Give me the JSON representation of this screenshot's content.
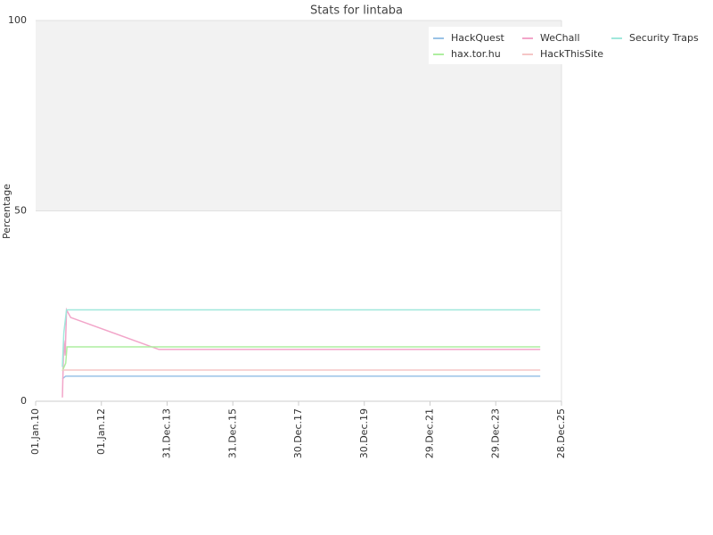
{
  "chart_data": {
    "type": "line",
    "title": "Stats for lintaba",
    "y_label": "Percentage",
    "xlim": [
      "2010-01-01",
      "2025-12-28"
    ],
    "xticks": [
      {
        "value": "2010-01-01",
        "label": "01.Jan.10"
      },
      {
        "value": "2012-01-01",
        "label": "01.Jan.12"
      },
      {
        "value": "2013-12-31",
        "label": "31.Dec.13"
      },
      {
        "value": "2015-12-31",
        "label": "31.Dec.15"
      },
      {
        "value": "2017-12-30",
        "label": "30.Dec.17"
      },
      {
        "value": "2019-12-30",
        "label": "30.Dec.19"
      },
      {
        "value": "2021-12-29",
        "label": "29.Dec.21"
      },
      {
        "value": "2023-12-29",
        "label": "29.Dec.23"
      },
      {
        "value": "2025-12-28",
        "label": "28.Dec.25"
      }
    ],
    "ylim": [
      0,
      100
    ],
    "yticks": [
      0,
      50,
      100
    ],
    "grid": true,
    "band_color": "#f2f2f2",
    "legend": "top-right",
    "series": [
      {
        "name": "HackQuest",
        "color": "#99c2e6",
        "x": [
          "2010-10-25",
          "2010-12-01",
          "2025-05-06"
        ],
        "values": [
          5.9,
          6.6,
          6.6
        ]
      },
      {
        "name": "WeChall",
        "color": "#f2a5c9",
        "x": [
          "2010-10-25",
          "2010-11-10",
          "2010-11-25",
          "2010-12-10",
          "2011-01-25",
          "2013-10-01",
          "2025-05-06"
        ],
        "values": [
          1,
          16,
          12,
          24,
          22,
          13.6,
          13.6
        ]
      },
      {
        "name": "Security Traps",
        "color": "#a0e8dc",
        "x": [
          "2010-10-25",
          "2010-11-10",
          "2010-12-10",
          "2025-05-06"
        ],
        "values": [
          9,
          18,
          24,
          24
        ]
      },
      {
        "name": "hax.tor.hu",
        "color": "#aeeea0",
        "x": [
          "2010-10-25",
          "2010-12-01",
          "2010-12-15",
          "2025-05-06"
        ],
        "values": [
          8,
          10,
          14.3,
          14.3
        ]
      },
      {
        "name": "HackThisSite",
        "color": "#f5c6c6",
        "x": [
          "2010-10-25",
          "2025-05-06"
        ],
        "values": [
          8.2,
          8.2
        ]
      }
    ]
  }
}
